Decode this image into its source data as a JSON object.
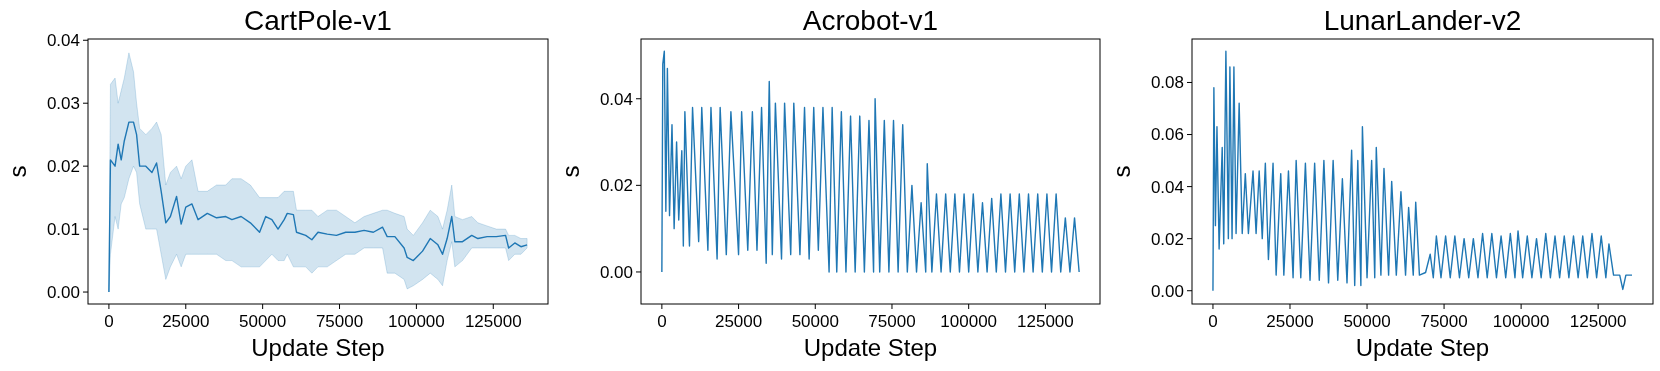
{
  "chart_data": [
    {
      "type": "line",
      "title": "CartPole-v1",
      "xlabel": "Update Step",
      "ylabel": "s",
      "xlim": [
        -6800,
        142800
      ],
      "xticks": [
        0,
        25000,
        50000,
        75000,
        100000,
        125000
      ],
      "ylim": [
        -0.0019,
        0.0402
      ],
      "yticks": [
        {
          "value": 0,
          "label": "0.00"
        },
        {
          "value": 0.01,
          "label": "0.01"
        },
        {
          "value": 0.02,
          "label": "0.02"
        },
        {
          "value": 0.03,
          "label": "0.03"
        },
        {
          "value": 0.04,
          "label": "0.04"
        }
      ],
      "grid": false,
      "x": [
        0,
        500,
        2000,
        3000,
        4000,
        5000,
        6500,
        8000,
        9000,
        10000,
        12000,
        14000,
        15500,
        17000,
        18500,
        20000,
        22000,
        23500,
        25000,
        27000,
        29000,
        32000,
        35000,
        38000,
        40000,
        43000,
        46000,
        49000,
        51000,
        53000,
        55000,
        57000,
        58000,
        60000,
        61000,
        64000,
        66000,
        68000,
        71000,
        74000,
        77000,
        80000,
        83000,
        86000,
        89000,
        90500,
        93000,
        96000,
        97000,
        99000,
        102000,
        104500,
        107000,
        108500,
        110000,
        111500,
        112500,
        115000,
        118000,
        120000,
        123000,
        126000,
        129000,
        130000,
        132000,
        134000,
        136000
      ],
      "series": [
        {
          "color": "#1f77b4",
          "values": [
            0,
            0.021,
            0.02,
            0.0235,
            0.021,
            0.024,
            0.027,
            0.027,
            0.025,
            0.02,
            0.02,
            0.019,
            0.0205,
            0.016,
            0.011,
            0.012,
            0.0152,
            0.0108,
            0.0135,
            0.014,
            0.0115,
            0.0125,
            0.0118,
            0.012,
            0.0115,
            0.012,
            0.011,
            0.0095,
            0.012,
            0.0115,
            0.01,
            0.0115,
            0.0125,
            0.0123,
            0.0095,
            0.009,
            0.0083,
            0.0095,
            0.0092,
            0.009,
            0.0095,
            0.0095,
            0.0098,
            0.0095,
            0.0103,
            0.0088,
            0.0088,
            0.007,
            0.0055,
            0.005,
            0.0065,
            0.0085,
            0.0075,
            0.006,
            0.0085,
            0.012,
            0.008,
            0.008,
            0.009,
            0.0085,
            0.0088,
            0.0088,
            0.009,
            0.007,
            0.0078,
            0.0072,
            0.0075
          ],
          "lower": [
            0,
            0.006,
            0.012,
            0.01,
            0.014,
            0.015,
            0.018,
            0.02,
            0.019,
            0.014,
            0.01,
            0.01,
            0.01,
            0.006,
            0.002,
            0.004,
            0.006,
            0.004,
            0.006,
            0.006,
            0.006,
            0.006,
            0.006,
            0.005,
            0.005,
            0.004,
            0.004,
            0.004,
            0.005,
            0.006,
            0.005,
            0.005,
            0.006,
            0.004,
            0.004,
            0.004,
            0.003,
            0.004,
            0.004,
            0.005,
            0.006,
            0.006,
            0.007,
            0.007,
            0.007,
            0.003,
            0.003,
            0.002,
            0.0005,
            0.001,
            0.002,
            0.003,
            0.002,
            0.001,
            0.005,
            0.008,
            0.004,
            0.005,
            0.007,
            0.007,
            0.007,
            0.007,
            0.007,
            0.005,
            0.006,
            0.006,
            0.007
          ],
          "upper": [
            0,
            0.033,
            0.034,
            0.03,
            0.032,
            0.034,
            0.038,
            0.035,
            0.03,
            0.026,
            0.025,
            0.026,
            0.027,
            0.025,
            0.017,
            0.019,
            0.02,
            0.018,
            0.02,
            0.021,
            0.016,
            0.016,
            0.017,
            0.017,
            0.018,
            0.018,
            0.017,
            0.015,
            0.015,
            0.015,
            0.015,
            0.016,
            0.016,
            0.016,
            0.013,
            0.013,
            0.013,
            0.012,
            0.013,
            0.013,
            0.012,
            0.011,
            0.012,
            0.0125,
            0.013,
            0.013,
            0.0125,
            0.012,
            0.01,
            0.009,
            0.011,
            0.013,
            0.012,
            0.01,
            0.013,
            0.017,
            0.012,
            0.0115,
            0.012,
            0.011,
            0.0105,
            0.01,
            0.01,
            0.009,
            0.009,
            0.0085,
            0.0085
          ]
        }
      ]
    },
    {
      "type": "line",
      "title": "Acrobot-v1",
      "xlabel": "Update Step",
      "ylabel": "s",
      "xlim": [
        -6800,
        142800
      ],
      "xticks": [
        0,
        25000,
        50000,
        75000,
        100000,
        125000
      ],
      "ylim": [
        -0.0074,
        0.0538
      ],
      "yticks": [
        {
          "value": 0,
          "label": "0.00"
        },
        {
          "value": 0.02,
          "label": "0.02"
        },
        {
          "value": 0.04,
          "label": "0.04"
        }
      ],
      "grid": false,
      "x": [
        0,
        300,
        800,
        1300,
        1800,
        2500,
        3300,
        4000,
        4800,
        5500,
        6500,
        7000,
        7500,
        9000,
        10000,
        12000,
        13000,
        15000,
        16000,
        18000,
        19000,
        21000,
        22500,
        25000,
        26000,
        28000,
        29500,
        31000,
        32500,
        34000,
        35000,
        36000,
        37000,
        39000,
        40000,
        42000,
        43000,
        45000,
        46500,
        48000,
        49500,
        51000,
        52500,
        54500,
        55500,
        57000,
        58500,
        60000,
        61500,
        63000,
        64500,
        66000,
        67500,
        69000,
        69500,
        71000,
        72500,
        74000,
        75500,
        77000,
        78500,
        80000,
        81500,
        83000,
        84500,
        86000,
        86500,
        88000,
        89500,
        91000,
        92500,
        94000,
        95500,
        97000,
        98500,
        100000,
        101500,
        103000,
        104500,
        106000,
        107500,
        109000,
        110500,
        112000,
        113500,
        115000,
        116500,
        118000,
        119500,
        121000,
        122500,
        124000,
        125500,
        127000,
        128500,
        130000,
        131500,
        133000,
        134500,
        136000
      ],
      "series": [
        {
          "color": "#1f77b4",
          "values": [
            0,
            0.048,
            0.051,
            0.014,
            0.047,
            0.013,
            0.034,
            0.01,
            0.03,
            0.012,
            0.028,
            0.006,
            0.037,
            0.006,
            0.038,
            0.007,
            0.038,
            0.005,
            0.038,
            0.003,
            0.038,
            0.004,
            0.037,
            0.004,
            0.037,
            0.005,
            0.037,
            0.005,
            0.038,
            0.002,
            0.044,
            0.004,
            0.039,
            0.003,
            0.039,
            0.004,
            0.039,
            0.004,
            0.038,
            0.003,
            0.038,
            0.005,
            0.038,
            0,
            0.038,
            0,
            0.037,
            0,
            0.036,
            0,
            0.036,
            0,
            0.035,
            0,
            0.04,
            0,
            0.035,
            0,
            0.035,
            0,
            0.034,
            0,
            0.02,
            0,
            0.016,
            0,
            0.025,
            0,
            0.018,
            0,
            0.018,
            0,
            0.018,
            0,
            0.018,
            0,
            0.018,
            0,
            0.016,
            0,
            0.017,
            0,
            0.018,
            0,
            0.018,
            0,
            0.018,
            0,
            0.018,
            0,
            0.018,
            0,
            0.018,
            0,
            0.018,
            0,
            0.0125,
            0,
            0.0125,
            0
          ]
        }
      ]
    },
    {
      "type": "line",
      "title": "LunarLander-v2",
      "xlabel": "Update Step",
      "ylabel": "s",
      "xlim": [
        -6800,
        142800
      ],
      "xticks": [
        0,
        25000,
        50000,
        75000,
        100000,
        125000
      ],
      "ylim": [
        -0.0051,
        0.0967
      ],
      "yticks": [
        {
          "value": 0,
          "label": "0.00"
        },
        {
          "value": 0.02,
          "label": "0.02"
        },
        {
          "value": 0.04,
          "label": "0.04"
        },
        {
          "value": 0.06,
          "label": "0.06"
        },
        {
          "value": 0.08,
          "label": "0.08"
        }
      ],
      "grid": false,
      "x": [
        0,
        300,
        800,
        1300,
        2000,
        3000,
        3500,
        4200,
        5000,
        5500,
        6200,
        6800,
        7500,
        8500,
        9500,
        10500,
        11500,
        13000,
        14000,
        15000,
        16000,
        17000,
        18000,
        19500,
        20500,
        22000,
        23000,
        24500,
        26000,
        27000,
        28500,
        30000,
        31500,
        33000,
        34500,
        36000,
        37500,
        39000,
        40500,
        42000,
        43500,
        45000,
        46000,
        47000,
        48000,
        48500,
        50000,
        51500,
        52500,
        53000,
        54500,
        55500,
        57000,
        58000,
        59500,
        61000,
        62500,
        63500,
        65000,
        65800,
        67000,
        69000,
        70500,
        71500,
        72500,
        74000,
        75500,
        77000,
        78500,
        80000,
        81500,
        83000,
        84500,
        86000,
        87500,
        89000,
        90500,
        92000,
        93500,
        95000,
        96500,
        98000,
        99000,
        100500,
        102000,
        103500,
        105000,
        106500,
        108000,
        109500,
        111000,
        112500,
        114000,
        115500,
        117000,
        118500,
        120000,
        121500,
        123000,
        124500,
        126000,
        127500,
        128500,
        130000,
        132000,
        133000,
        134000,
        136000
      ],
      "series": [
        {
          "color": "#1f77b4",
          "values": [
            0,
            0.078,
            0.025,
            0.063,
            0.016,
            0.055,
            0.018,
            0.092,
            0.02,
            0.086,
            0.02,
            0.086,
            0.022,
            0.072,
            0.022,
            0.045,
            0.022,
            0.046,
            0.022,
            0.046,
            0.02,
            0.049,
            0.012,
            0.049,
            0.006,
            0.045,
            0.006,
            0.046,
            0.005,
            0.05,
            0.005,
            0.049,
            0.004,
            0.049,
            0.004,
            0.05,
            0.003,
            0.05,
            0.004,
            0.043,
            0.003,
            0.054,
            0.002,
            0.05,
            0.002,
            0.063,
            0.005,
            0.05,
            0.005,
            0.055,
            0.006,
            0.047,
            0.006,
            0.042,
            0.006,
            0.038,
            0.006,
            0.032,
            0.006,
            0.034,
            0.006,
            0.007,
            0.014,
            0.005,
            0.021,
            0.005,
            0.021,
            0.005,
            0.021,
            0.005,
            0.02,
            0.005,
            0.02,
            0.005,
            0.022,
            0.005,
            0.022,
            0.005,
            0.021,
            0.005,
            0.022,
            0.005,
            0.023,
            0.005,
            0.021,
            0.005,
            0.02,
            0.005,
            0.022,
            0.005,
            0.021,
            0.005,
            0.021,
            0.005,
            0.021,
            0.005,
            0.021,
            0.005,
            0.022,
            0.005,
            0.021,
            0.005,
            0.018,
            0.006,
            0.006,
            0.0005,
            0.006,
            0.006
          ]
        }
      ]
    }
  ]
}
